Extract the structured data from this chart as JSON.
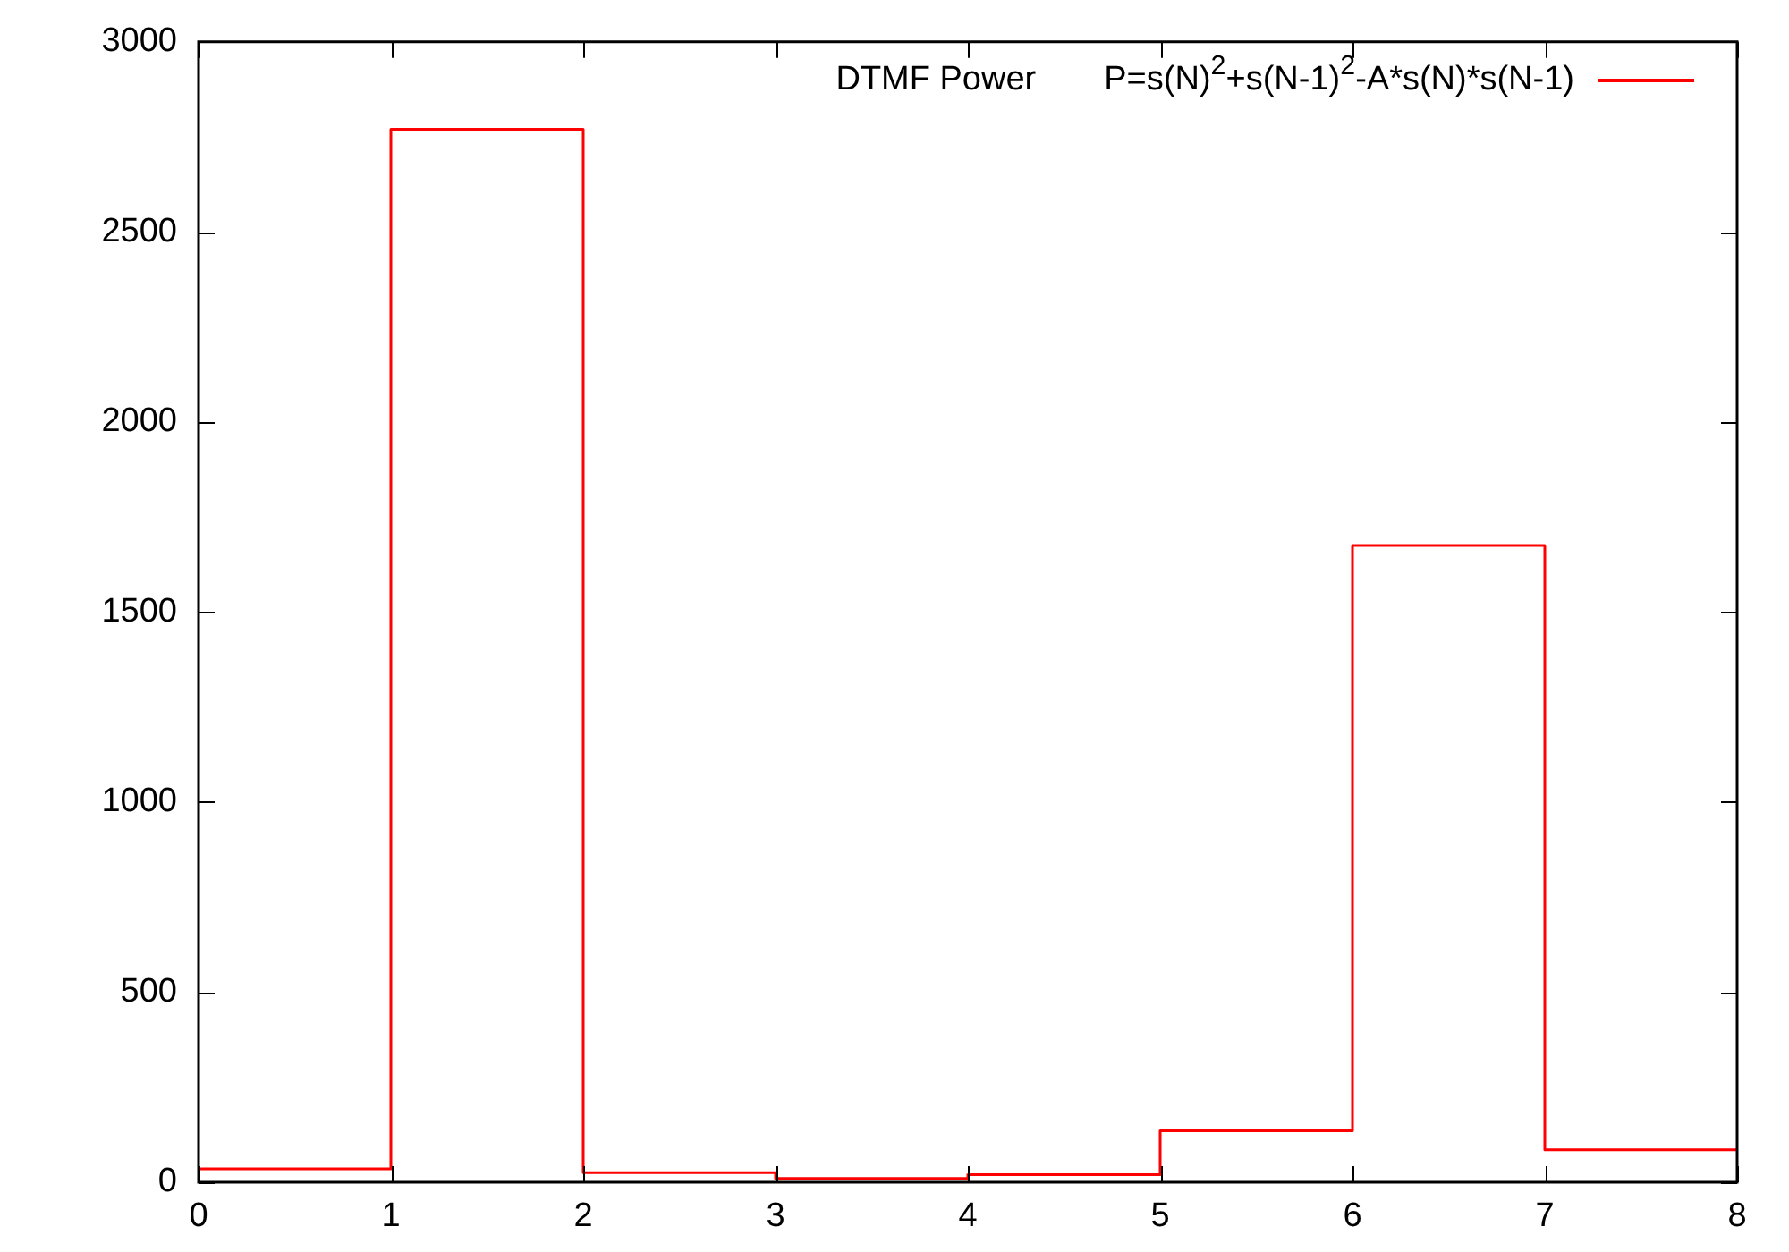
{
  "chart_data": {
    "type": "step",
    "legend_title": "DTMF Power",
    "legend": "top right",
    "marker": "none",
    "x": [
      0,
      1,
      2,
      3,
      4,
      5,
      6,
      7,
      8
    ],
    "series": [
      {
        "name": "P=s(N)$^{2}$+s(N-1)$^{2}$-A*s(N)*s(N-1)",
        "color": "#ff0000",
        "values": [
          35,
          2770,
          25,
          10,
          20,
          135,
          1675,
          85,
          85
        ]
      }
    ],
    "xlim": [
      0,
      8
    ],
    "xticks": [
      0,
      1,
      2,
      3,
      4,
      5,
      6,
      7,
      8
    ],
    "ylim": [
      0,
      3000
    ],
    "yticks": [
      0,
      500,
      1000,
      1500,
      2000,
      2500,
      3000
    ]
  }
}
